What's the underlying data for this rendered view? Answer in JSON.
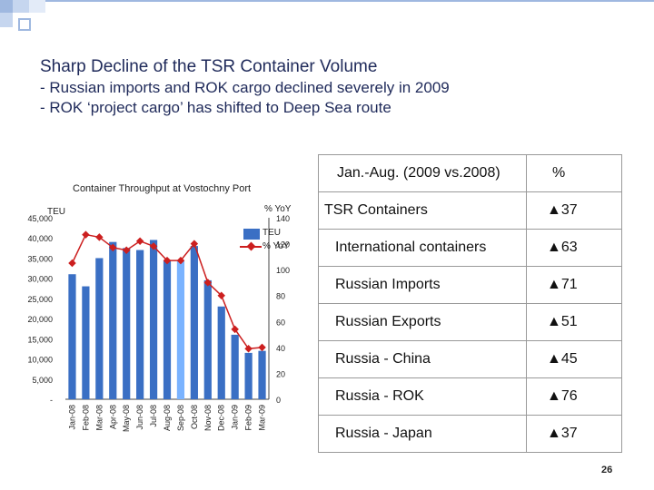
{
  "slide": {
    "title": "Sharp Decline of the TSR Container Volume",
    "bullet1": "- Russian imports and ROK cargo declined severely in 2009",
    "bullet2": "- ROK ‘project cargo’ has shifted to Deep Sea route",
    "page_number": "26"
  },
  "chart_data": {
    "type": "bar",
    "title": "Container Throughput at Vostochny Port",
    "categories": [
      "Jan-08",
      "Feb-08",
      "Mar-08",
      "Apr-08",
      "May-08",
      "Jun-08",
      "Jul-08",
      "Aug-08",
      "Sep-08",
      "Oct-08",
      "Nov-08",
      "Dec-08",
      "Jan-09",
      "Feb-09",
      "Mar-09"
    ],
    "series": [
      {
        "name": "TEU",
        "type": "bar",
        "axis": "left",
        "values": [
          31000,
          28000,
          35000,
          39000,
          37500,
          37000,
          39500,
          34500,
          34500,
          38000,
          29500,
          23000,
          16000,
          11500,
          12000
        ]
      },
      {
        "name": "% YoY",
        "type": "line",
        "axis": "right",
        "values": [
          105,
          127,
          125,
          117,
          115,
          122,
          118,
          107,
          107,
          120,
          90,
          80,
          54,
          39,
          40
        ]
      }
    ],
    "ylabel": "TEU",
    "y2label": "% YoY",
    "ylim": [
      0,
      45000
    ],
    "y2lim": [
      0,
      140
    ],
    "yticks": [
      "45,000",
      "40,000",
      "35,000",
      "30,000",
      "25,000",
      "20,000",
      "15,000",
      "10,000",
      "5,000",
      "-"
    ],
    "y2ticks": [
      "140",
      "120",
      "100",
      "80",
      "60",
      "40",
      "20",
      "0"
    ],
    "colors": {
      "bar": "#3a6fc4",
      "highlight_bar": "#7ab3ff",
      "line": "#cc1f1f"
    }
  },
  "table": {
    "header": [
      "Jan.-Aug. (2009 vs.2008)",
      "%"
    ],
    "rows": [
      {
        "label": "TSR Containers",
        "value": "▲37",
        "indent": false
      },
      {
        "label": "International containers",
        "value": "▲63",
        "indent": true
      },
      {
        "label": "Russian Imports",
        "value": "▲71",
        "indent": true
      },
      {
        "label": "Russian Exports",
        "value": "▲51",
        "indent": true
      },
      {
        "label": "Russia - China",
        "value": "▲45",
        "indent": true
      },
      {
        "label": "Russia - ROK",
        "value": "▲76",
        "indent": true
      },
      {
        "label": "Russia - Japan",
        "value": "▲37",
        "indent": true
      }
    ]
  },
  "colors": {
    "deco_blue": "#9fb8e0",
    "deco_light": "#dfe8f7",
    "title": "#1f2a5a"
  }
}
